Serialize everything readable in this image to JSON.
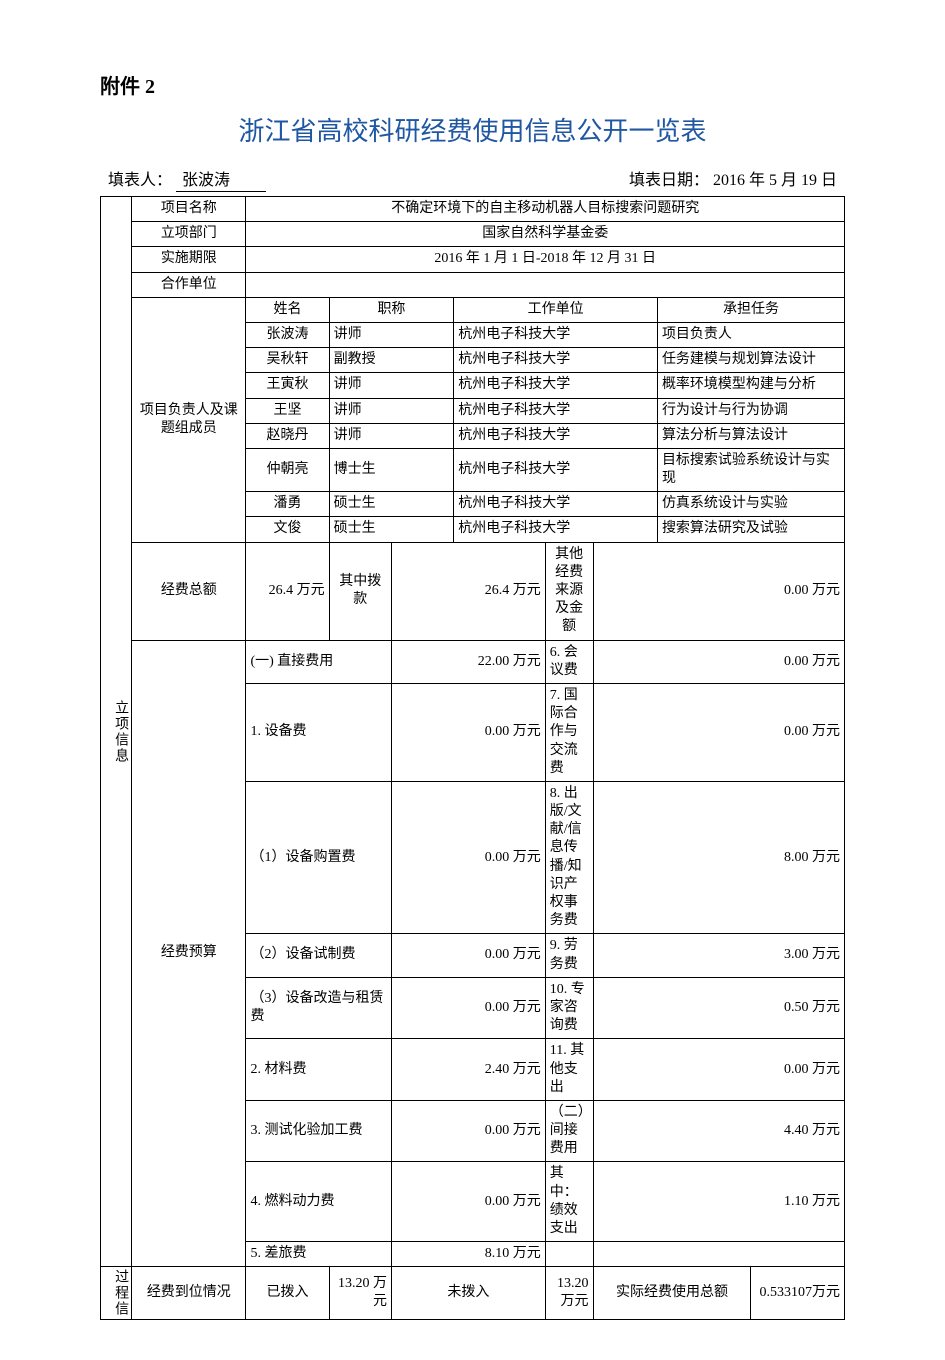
{
  "attachment": "附件 2",
  "title": "浙江省高校科研经费使用信息公开一览表",
  "meta": {
    "filler_label": "填表人：",
    "filler_name": "张波涛",
    "date_label": "填表日期：",
    "date_value": " 2016 年 5 月 19 日"
  },
  "side": {
    "project_info": "立项信息",
    "process_info": "过程信"
  },
  "headers": {
    "project_name_label": "项目名称",
    "project_name": "不确定环境下的自主移动机器人目标搜索问题研究",
    "dept_label": "立项部门",
    "dept": "国家自然科学基金委",
    "period_label": "实施期限",
    "period": "2016 年 1 月 1 日-2018 年 12 月 31 日",
    "partner_label": "合作单位",
    "partner": ""
  },
  "team": {
    "group_label": "项目负责人及课题组成员",
    "col_name": "姓名",
    "col_title": "职称",
    "col_unit": "工作单位",
    "col_task": "承担任务",
    "rows": [
      {
        "name": "张波涛",
        "title": "讲师",
        "unit": "杭州电子科技大学",
        "task": "项目负责人"
      },
      {
        "name": "吴秋轩",
        "title": "副教授",
        "unit": "杭州电子科技大学",
        "task": "任务建模与规划算法设计"
      },
      {
        "name": "王寅秋",
        "title": "讲师",
        "unit": "杭州电子科技大学",
        "task": "概率环境模型构建与分析"
      },
      {
        "name": "王坚",
        "title": "讲师",
        "unit": "杭州电子科技大学",
        "task": "行为设计与行为协调"
      },
      {
        "name": "赵晓丹",
        "title": "讲师",
        "unit": "杭州电子科技大学",
        "task": "算法分析与算法设计"
      },
      {
        "name": "仲朝亮",
        "title": "博士生",
        "unit": "杭州电子科技大学",
        "task": "目标搜索试验系统设计与实现"
      },
      {
        "name": "潘勇",
        "title": "硕士生",
        "unit": "杭州电子科技大学",
        "task": "仿真系统设计与实验"
      },
      {
        "name": "文俊",
        "title": "硕士生",
        "unit": "杭州电子科技大学",
        "task": "搜索算法研究及试验"
      }
    ]
  },
  "fund": {
    "total_label": "经费总额",
    "total": "26.4 万元",
    "grant_label": "其中拨款",
    "grant": "26.4 万元",
    "other_src_label": "其他经费来源及金额",
    "other_src": "0.00 万元"
  },
  "budget": {
    "label": "经费预算",
    "rows": [
      {
        "l": "(一) 直接费用",
        "lv": "22.00 万元",
        "r": "6. 会议费",
        "rv": "0.00 万元"
      },
      {
        "l": "1. 设备费",
        "lv": "0.00 万元",
        "r": "7. 国际合作与交流费",
        "rv": "0.00 万元"
      },
      {
        "l": "（1）设备购置费",
        "lv": "0.00 万元",
        "r": "8. 出版/文献/信息传播/知识产权事务费",
        "rv": "8.00 万元"
      },
      {
        "l": "（2）设备试制费",
        "lv": "0.00 万元",
        "r": "9. 劳务费",
        "rv": "3.00 万元"
      },
      {
        "l": "（3）设备改造与租赁费",
        "lv": "0.00 万元",
        "r": "10. 专家咨询费",
        "rv": "0.50 万元"
      },
      {
        "l": "2. 材料费",
        "lv": "2.40 万元",
        "r": "11. 其他支出",
        "rv": "0.00 万元"
      },
      {
        "l": "3. 测试化验加工费",
        "lv": "0.00 万元",
        "r": "（二）间接费用",
        "rv": "4.40 万元"
      },
      {
        "l": "4. 燃料动力费",
        "lv": "0.00 万元",
        "r": "其中：绩效支出",
        "rv": "1.10 万元"
      },
      {
        "l": "5. 差旅费",
        "lv": "8.10 万元",
        "r": "",
        "rv": ""
      }
    ]
  },
  "arrival": {
    "label": "经费到位情况",
    "paid_label": "已拨入",
    "paid": "13.20 万元",
    "unpaid_label": "未拨入",
    "unpaid": "13.20 万元",
    "actual_label": "实际经费使用总额",
    "actual": "0.533107万元"
  }
}
